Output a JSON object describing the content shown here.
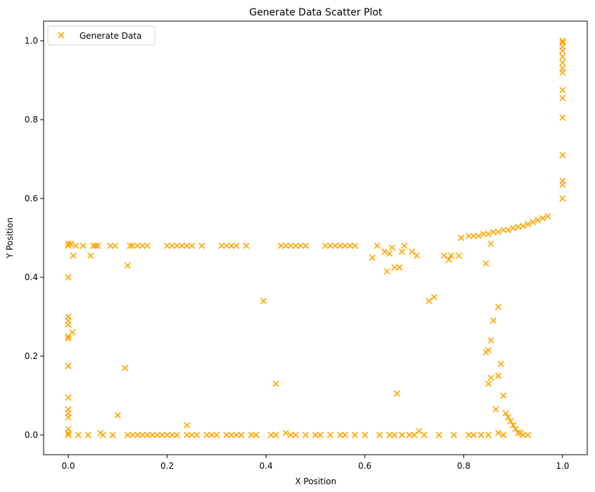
{
  "chart_data": {
    "type": "scatter",
    "title": "Generate Data Scatter Plot",
    "xlabel": "X Position",
    "ylabel": "Y Position",
    "xlim": [
      -0.05,
      1.05
    ],
    "ylim": [
      -0.05,
      1.05
    ],
    "xticks": [
      0.0,
      0.2,
      0.4,
      0.6,
      0.8,
      1.0
    ],
    "yticks": [
      0.0,
      0.2,
      0.4,
      0.6,
      0.8,
      1.0
    ],
    "xtick_labels": [
      "0.0",
      "0.2",
      "0.4",
      "0.6",
      "0.8",
      "1.0"
    ],
    "ytick_labels": [
      "0.0",
      "0.2",
      "0.4",
      "0.6",
      "0.8",
      "1.0"
    ],
    "grid": false,
    "legend_position": "top-left",
    "marker": "x",
    "color": "#FFA500",
    "series": [
      {
        "name": "Generate Data",
        "points": [
          [
            0.0,
            1.0
          ],
          [
            0.0,
            0.485
          ],
          [
            0.0,
            0.48
          ],
          [
            0.0,
            0.4
          ],
          [
            0.0,
            0.3
          ],
          [
            0.0,
            0.29
          ],
          [
            0.0,
            0.28
          ],
          [
            0.0,
            0.25
          ],
          [
            0.0,
            0.245
          ],
          [
            0.0,
            0.175
          ],
          [
            0.0,
            0.095
          ],
          [
            0.0,
            0.065
          ],
          [
            0.0,
            0.055
          ],
          [
            0.0,
            0.045
          ],
          [
            0.0,
            0.015
          ],
          [
            0.0,
            0.005
          ],
          [
            0.0,
            0.0
          ],
          [
            0.005,
            0.485
          ],
          [
            0.008,
            0.26
          ],
          [
            0.01,
            0.455
          ],
          [
            0.015,
            0.48
          ],
          [
            0.02,
            0.0
          ],
          [
            0.03,
            0.48
          ],
          [
            0.04,
            0.0
          ],
          [
            0.045,
            0.455
          ],
          [
            0.05,
            0.48
          ],
          [
            0.055,
            0.48
          ],
          [
            0.06,
            0.48
          ],
          [
            0.065,
            0.005
          ],
          [
            0.07,
            0.0
          ],
          [
            0.085,
            0.48
          ],
          [
            0.09,
            0.0
          ],
          [
            0.095,
            0.48
          ],
          [
            0.1,
            0.05
          ],
          [
            0.115,
            0.17
          ],
          [
            0.12,
            0.43
          ],
          [
            0.125,
            0.48
          ],
          [
            0.13,
            0.48
          ],
          [
            0.14,
            0.48
          ],
          [
            0.15,
            0.48
          ],
          [
            0.16,
            0.48
          ],
          [
            0.12,
            0.0
          ],
          [
            0.13,
            0.0
          ],
          [
            0.14,
            0.0
          ],
          [
            0.15,
            0.0
          ],
          [
            0.16,
            0.0
          ],
          [
            0.17,
            0.0
          ],
          [
            0.18,
            0.0
          ],
          [
            0.19,
            0.0
          ],
          [
            0.2,
            0.0
          ],
          [
            0.21,
            0.0
          ],
          [
            0.22,
            0.0
          ],
          [
            0.2,
            0.48
          ],
          [
            0.21,
            0.48
          ],
          [
            0.22,
            0.48
          ],
          [
            0.23,
            0.48
          ],
          [
            0.24,
            0.48
          ],
          [
            0.25,
            0.48
          ],
          [
            0.24,
            0.025
          ],
          [
            0.24,
            0.0
          ],
          [
            0.25,
            0.0
          ],
          [
            0.26,
            0.0
          ],
          [
            0.27,
            0.48
          ],
          [
            0.28,
            0.0
          ],
          [
            0.29,
            0.0
          ],
          [
            0.3,
            0.0
          ],
          [
            0.31,
            0.48
          ],
          [
            0.32,
            0.48
          ],
          [
            0.33,
            0.48
          ],
          [
            0.34,
            0.48
          ],
          [
            0.36,
            0.48
          ],
          [
            0.32,
            0.0
          ],
          [
            0.33,
            0.0
          ],
          [
            0.34,
            0.0
          ],
          [
            0.35,
            0.0
          ],
          [
            0.37,
            0.0
          ],
          [
            0.38,
            0.0
          ],
          [
            0.395,
            0.34
          ],
          [
            0.41,
            0.0
          ],
          [
            0.42,
            0.13
          ],
          [
            0.42,
            0.0
          ],
          [
            0.43,
            0.48
          ],
          [
            0.44,
            0.48
          ],
          [
            0.45,
            0.48
          ],
          [
            0.46,
            0.48
          ],
          [
            0.47,
            0.48
          ],
          [
            0.48,
            0.48
          ],
          [
            0.44,
            0.005
          ],
          [
            0.45,
            0.0
          ],
          [
            0.46,
            0.0
          ],
          [
            0.48,
            0.0
          ],
          [
            0.5,
            0.0
          ],
          [
            0.51,
            0.0
          ],
          [
            0.52,
            0.48
          ],
          [
            0.53,
            0.48
          ],
          [
            0.54,
            0.48
          ],
          [
            0.55,
            0.48
          ],
          [
            0.56,
            0.48
          ],
          [
            0.57,
            0.48
          ],
          [
            0.58,
            0.48
          ],
          [
            0.53,
            0.0
          ],
          [
            0.55,
            0.0
          ],
          [
            0.56,
            0.0
          ],
          [
            0.58,
            0.0
          ],
          [
            0.6,
            0.0
          ],
          [
            0.615,
            0.45
          ],
          [
            0.625,
            0.48
          ],
          [
            0.63,
            0.0
          ],
          [
            0.64,
            0.465
          ],
          [
            0.645,
            0.415
          ],
          [
            0.65,
            0.46
          ],
          [
            0.655,
            0.475
          ],
          [
            0.66,
            0.425
          ],
          [
            0.665,
            0.105
          ],
          [
            0.67,
            0.425
          ],
          [
            0.675,
            0.465
          ],
          [
            0.68,
            0.48
          ],
          [
            0.65,
            0.0
          ],
          [
            0.66,
            0.0
          ],
          [
            0.675,
            0.0
          ],
          [
            0.69,
            0.0
          ],
          [
            0.695,
            0.465
          ],
          [
            0.7,
            0.0
          ],
          [
            0.705,
            0.455
          ],
          [
            0.71,
            0.01
          ],
          [
            0.72,
            0.0
          ],
          [
            0.73,
            0.34
          ],
          [
            0.74,
            0.35
          ],
          [
            0.75,
            0.0
          ],
          [
            0.76,
            0.455
          ],
          [
            0.77,
            0.445
          ],
          [
            0.775,
            0.455
          ],
          [
            0.78,
            0.0
          ],
          [
            0.79,
            0.455
          ],
          [
            0.795,
            0.5
          ],
          [
            0.81,
            0.505
          ],
          [
            0.82,
            0.505
          ],
          [
            0.83,
            0.505
          ],
          [
            0.84,
            0.51
          ],
          [
            0.845,
            0.435
          ],
          [
            0.85,
            0.51
          ],
          [
            0.855,
            0.485
          ],
          [
            0.86,
            0.515
          ],
          [
            0.87,
            0.515
          ],
          [
            0.88,
            0.52
          ],
          [
            0.89,
            0.52
          ],
          [
            0.9,
            0.525
          ],
          [
            0.91,
            0.528
          ],
          [
            0.92,
            0.53
          ],
          [
            0.93,
            0.535
          ],
          [
            0.94,
            0.54
          ],
          [
            0.95,
            0.545
          ],
          [
            0.96,
            0.55
          ],
          [
            0.97,
            0.555
          ],
          [
            0.845,
            0.21
          ],
          [
            0.85,
            0.215
          ],
          [
            0.85,
            0.13
          ],
          [
            0.855,
            0.145
          ],
          [
            0.855,
            0.24
          ],
          [
            0.86,
            0.29
          ],
          [
            0.865,
            0.065
          ],
          [
            0.87,
            0.15
          ],
          [
            0.87,
            0.325
          ],
          [
            0.875,
            0.18
          ],
          [
            0.88,
            0.1
          ],
          [
            0.885,
            0.055
          ],
          [
            0.89,
            0.045
          ],
          [
            0.895,
            0.035
          ],
          [
            0.9,
            0.025
          ],
          [
            0.905,
            0.015
          ],
          [
            0.91,
            0.005
          ],
          [
            0.915,
            0.005
          ],
          [
            0.92,
            0.0
          ],
          [
            0.93,
            0.0
          ],
          [
            0.81,
            0.0
          ],
          [
            0.82,
            0.0
          ],
          [
            0.835,
            0.0
          ],
          [
            0.85,
            0.0
          ],
          [
            0.87,
            0.005
          ],
          [
            0.88,
            0.0
          ],
          [
            1.0,
            0.6
          ],
          [
            1.0,
            0.635
          ],
          [
            1.0,
            0.645
          ],
          [
            1.0,
            0.71
          ],
          [
            1.0,
            0.805
          ],
          [
            1.0,
            0.855
          ],
          [
            1.0,
            0.875
          ],
          [
            1.0,
            0.92
          ],
          [
            1.0,
            0.93
          ],
          [
            1.0,
            0.945
          ],
          [
            1.0,
            0.96
          ],
          [
            1.0,
            0.975
          ],
          [
            1.0,
            0.985
          ],
          [
            1.0,
            0.995
          ],
          [
            1.0,
            1.0
          ]
        ]
      }
    ]
  }
}
